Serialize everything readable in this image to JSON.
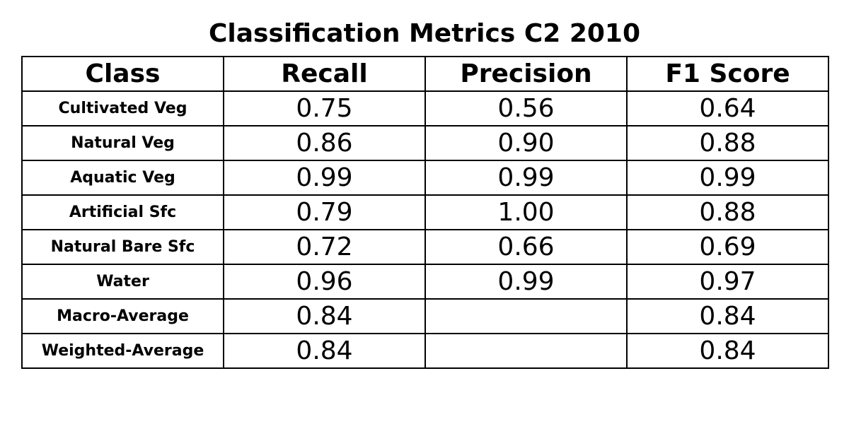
{
  "title": "Classification Metrics C2 2010",
  "chart_data": {
    "type": "table",
    "title": "Classification Metrics C2 2010",
    "columns": [
      "Class",
      "Recall",
      "Precision",
      "F1 Score"
    ],
    "rows": [
      {
        "class": "Cultivated Veg",
        "recall": "0.75",
        "precision": "0.56",
        "f1": "0.64"
      },
      {
        "class": "Natural Veg",
        "recall": "0.86",
        "precision": "0.90",
        "f1": "0.88"
      },
      {
        "class": "Aquatic Veg",
        "recall": "0.99",
        "precision": "0.99",
        "f1": "0.99"
      },
      {
        "class": "Artificial Sfc",
        "recall": "0.79",
        "precision": "1.00",
        "f1": "0.88"
      },
      {
        "class": "Natural Bare Sfc",
        "recall": "0.72",
        "precision": "0.66",
        "f1": "0.69"
      },
      {
        "class": "Water",
        "recall": "0.96",
        "precision": "0.99",
        "f1": "0.97"
      },
      {
        "class": "Macro-Average",
        "recall": "0.84",
        "precision": "",
        "f1": "0.84"
      },
      {
        "class": "Weighted-Average",
        "recall": "0.84",
        "precision": "",
        "f1": "0.84"
      }
    ]
  }
}
